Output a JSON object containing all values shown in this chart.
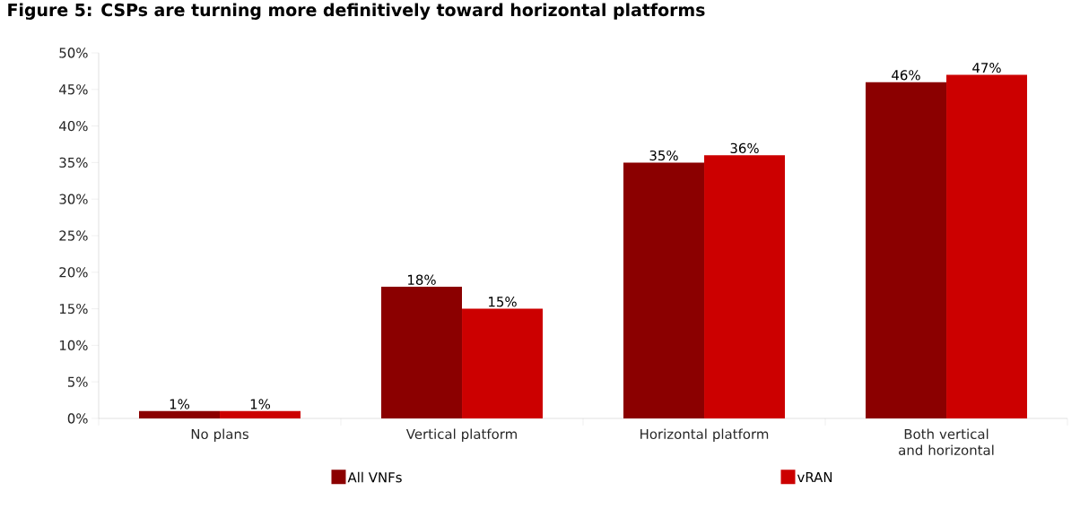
{
  "chart_data": {
    "type": "bar",
    "title": "Figure 5: CSPs are turning more definitively toward horizontal platforms",
    "categories": [
      "No plans",
      "Vertical platform",
      "Horizontal platform",
      "Both vertical and horizontal"
    ],
    "series": [
      {
        "name": "All VNFs",
        "color": "#8b0000",
        "values": [
          1,
          18,
          35,
          46
        ],
        "value_labels": [
          "1%",
          "18%",
          "35%",
          "46%"
        ]
      },
      {
        "name": "vRAN",
        "color": "#cc0000",
        "values": [
          1,
          15,
          36,
          47
        ],
        "value_labels": [
          "1%",
          "15%",
          "36%",
          "47%"
        ]
      }
    ],
    "ylim": [
      0,
      50
    ],
    "yticks": [
      {
        "value": 0,
        "label": "0%"
      },
      {
        "value": 5,
        "label": "5%"
      },
      {
        "value": 10,
        "label": "10%"
      },
      {
        "value": 15,
        "label": "15%"
      },
      {
        "value": 20,
        "label": "20%"
      },
      {
        "value": 25,
        "label": "25%"
      },
      {
        "value": 30,
        "label": "30%"
      },
      {
        "value": 35,
        "label": "35%"
      },
      {
        "value": 40,
        "label": "40%"
      },
      {
        "value": 45,
        "label": "45%"
      },
      {
        "value": 50,
        "label": "50%"
      }
    ],
    "legend": "bottom",
    "grid": false
  }
}
